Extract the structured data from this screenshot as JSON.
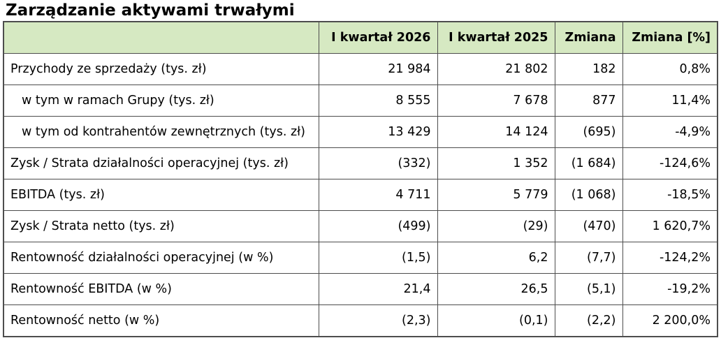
{
  "title": "Zarządzanie aktywami trwałymi",
  "table": {
    "headers": [
      "",
      "I kwartał 2026",
      "I kwartał 2025",
      "Zmiana",
      "Zmiana [%]"
    ],
    "rows": [
      {
        "label": "Przychody ze sprzedaży (tys. zł)",
        "indent": false,
        "q2026": "21 984",
        "q2025": "21 802",
        "change": "182",
        "change_pct": "0,8%"
      },
      {
        "label": "w tym w ramach Grupy (tys. zł)",
        "indent": true,
        "q2026": "8 555",
        "q2025": "7 678",
        "change": "877",
        "change_pct": "11,4%"
      },
      {
        "label": "w tym od kontrahentów zewnętrznych (tys. zł)",
        "indent": true,
        "q2026": "13 429",
        "q2025": "14 124",
        "change": "(695)",
        "change_pct": "-4,9%"
      },
      {
        "label": "Zysk / Strata działalności operacyjnej (tys. zł)",
        "indent": false,
        "q2026": "(332)",
        "q2025": "1 352",
        "change": "(1 684)",
        "change_pct": "-124,6%"
      },
      {
        "label": "EBITDA (tys. zł)",
        "indent": false,
        "q2026": "4 711",
        "q2025": "5 779",
        "change": "(1 068)",
        "change_pct": "-18,5%"
      },
      {
        "label": "Zysk / Strata netto (tys. zł)",
        "indent": false,
        "q2026": "(499)",
        "q2025": "(29)",
        "change": "(470)",
        "change_pct": "1 620,7%"
      },
      {
        "label": "Rentowność działalności operacyjnej (w %)",
        "indent": false,
        "q2026": "(1,5)",
        "q2025": "6,2",
        "change": "(7,7)",
        "change_pct": "-124,2%"
      },
      {
        "label": "Rentowność EBITDA (w %)",
        "indent": false,
        "q2026": "21,4",
        "q2025": "26,5",
        "change": "(5,1)",
        "change_pct": "-19,2%"
      },
      {
        "label": "Rentowność netto (w %)",
        "indent": false,
        "q2026": "(2,3)",
        "q2025": "(0,1)",
        "change": "(2,2)",
        "change_pct": "2 200,0%"
      }
    ]
  },
  "colors": {
    "header_background": "#d6e9c2",
    "border": "#4d4d4d",
    "text": "#000000"
  }
}
